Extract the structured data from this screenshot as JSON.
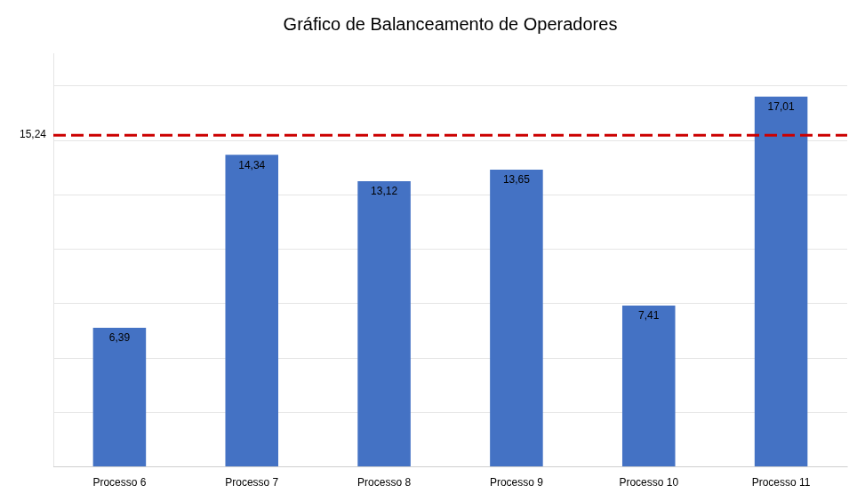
{
  "chart_data": {
    "type": "bar",
    "title": "Gráfico de Balanceamento de Operadores",
    "categories": [
      "Processo 6",
      "Processo 7",
      "Processo 8",
      "Processo 9",
      "Processo 10",
      "Processo 11"
    ],
    "values": [
      6.39,
      14.34,
      13.12,
      13.65,
      7.41,
      17.01
    ],
    "value_labels": [
      "6,39",
      "14,34",
      "13,12",
      "13,65",
      "7,41",
      "17,01"
    ],
    "data_labels": true,
    "color": "#4472C4",
    "reference_line": {
      "value": 15.24,
      "label": "15,24",
      "color": "#CC0000",
      "line_style": "dashed"
    },
    "ylim": [
      0,
      19
    ],
    "yticks": [
      0,
      2.5,
      5.0,
      7.5,
      10.0,
      12.5,
      15.0,
      17.5
    ],
    "tick_labels": "x",
    "grid": true
  }
}
